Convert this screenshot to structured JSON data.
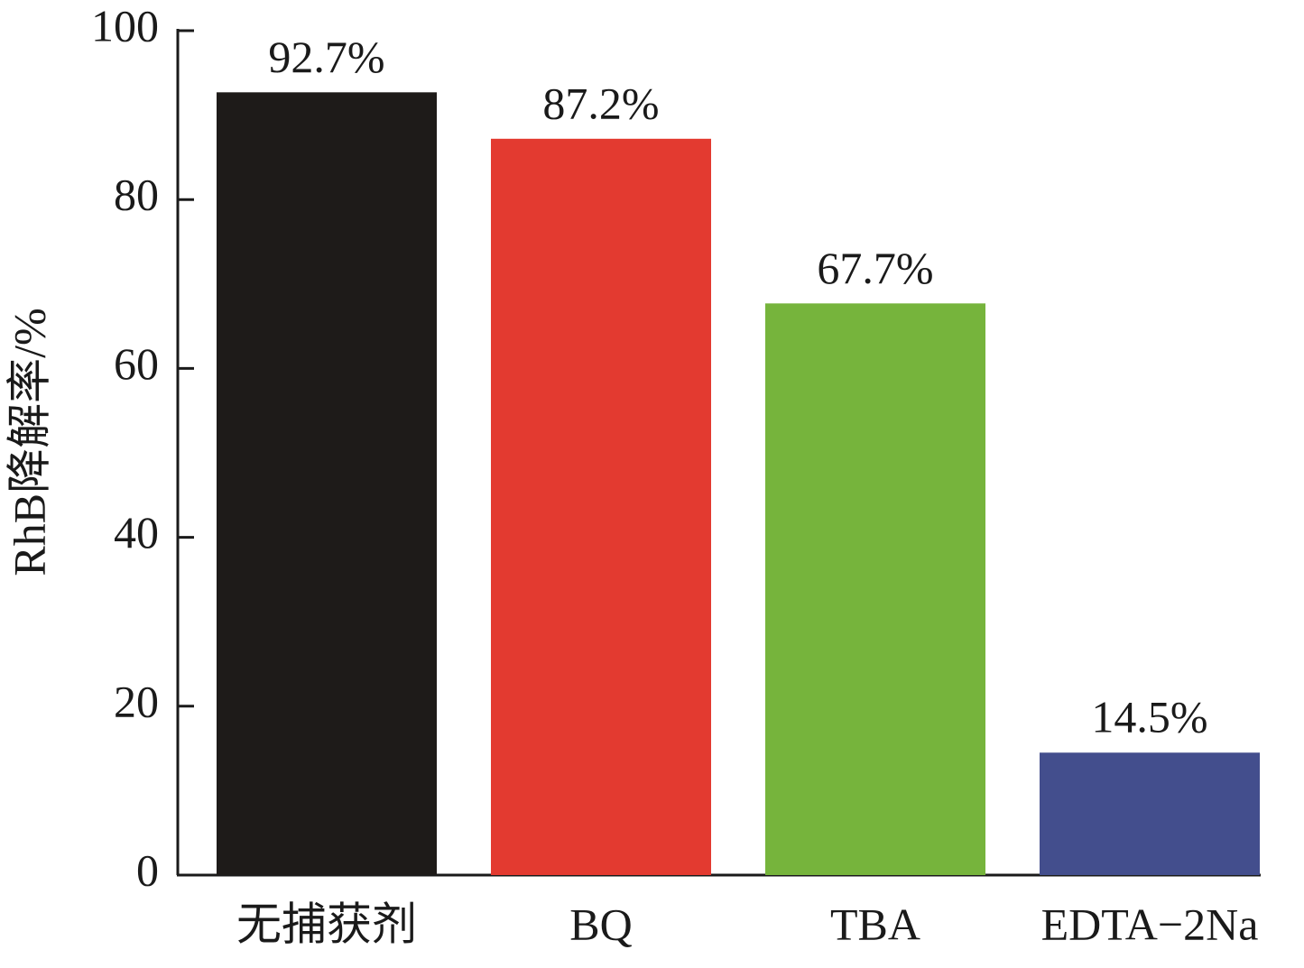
{
  "chart_data": {
    "type": "bar",
    "y_label": "RhB降解率/%",
    "categories": [
      "无捕获剂",
      "BQ",
      "TBA",
      "EDTA−2Na"
    ],
    "values": [
      92.7,
      87.2,
      67.7,
      14.5
    ],
    "value_labels": [
      "92.7%",
      "87.2%",
      "67.7%",
      "14.5%"
    ],
    "colors": [
      "#1e1b19",
      "#e33a30",
      "#76b43c",
      "#434e8d"
    ],
    "ylim": [
      0,
      100
    ],
    "yticks": [
      0,
      20,
      40,
      60,
      80,
      100
    ],
    "grid": false
  }
}
